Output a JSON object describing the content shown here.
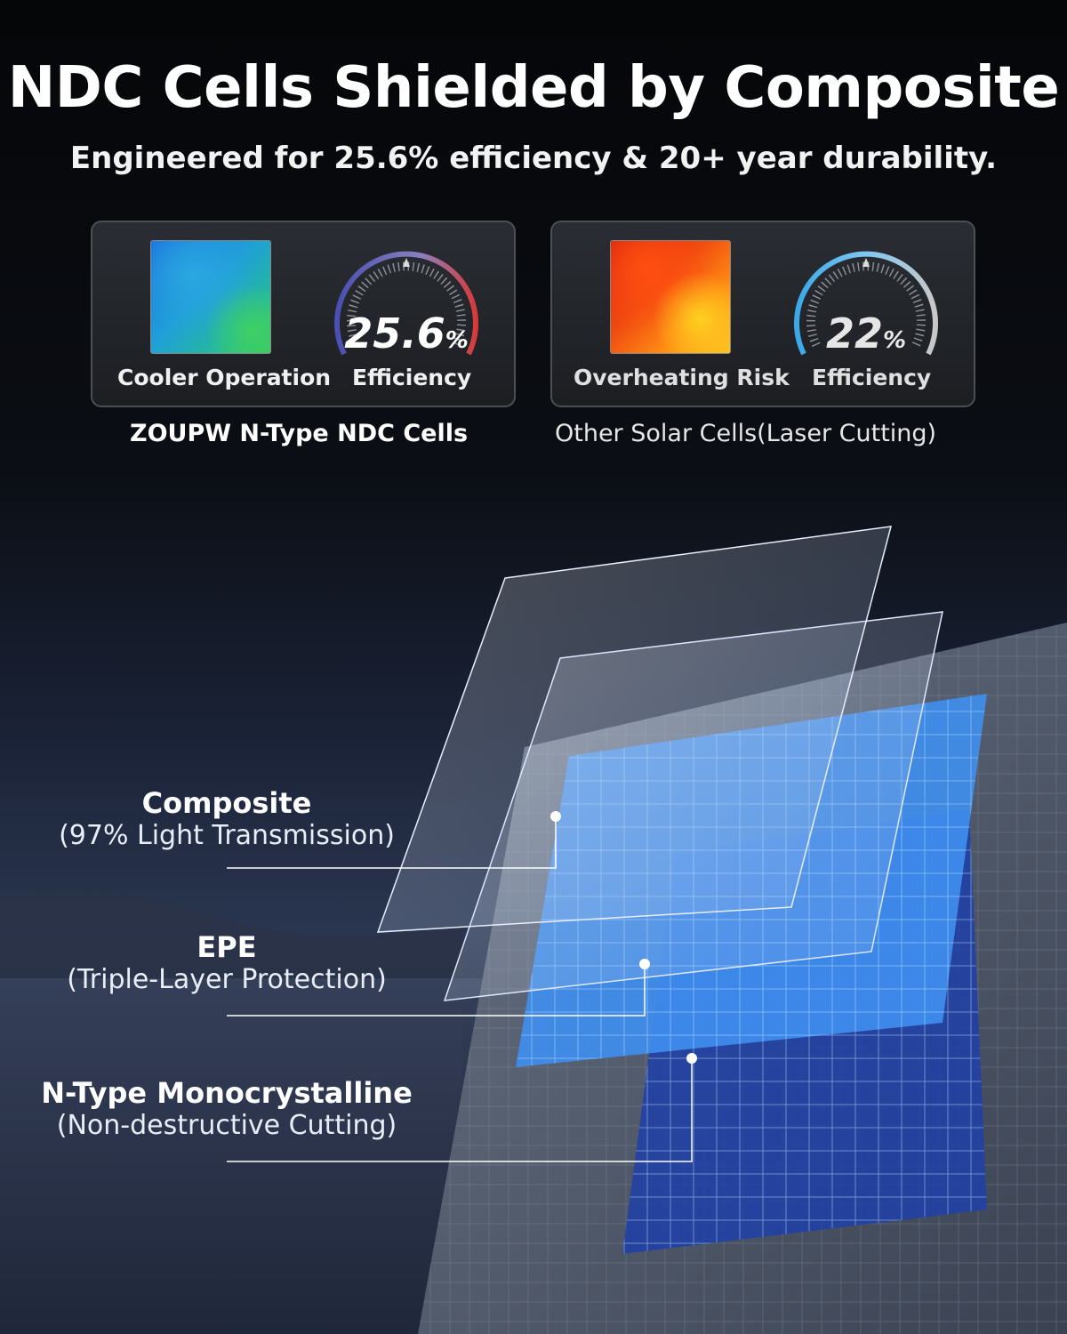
{
  "header": {
    "title": "NDC Cells Shielded by Composite",
    "subtitle": "Engineered for 25.6% efficiency & 20+ year durability."
  },
  "comparison": {
    "left": {
      "thermal_label": "Cooler Operation",
      "gauge_value": "25.6",
      "gauge_unit": "%",
      "gauge_label": "Efficiency",
      "caption": "ZOUPW N-Type NDC Cells"
    },
    "right": {
      "thermal_label": "Overheating Risk",
      "gauge_value": "22",
      "gauge_unit": "%",
      "gauge_label": "Efficiency",
      "caption": "Other Solar Cells(Laser Cutting)"
    }
  },
  "layers": [
    {
      "name": "Composite",
      "detail": "(97% Light Transmission)"
    },
    {
      "name": "EPE",
      "detail": "(Triple-Layer Protection)"
    },
    {
      "name": "N-Type Monocrystalline",
      "detail": "(Non-destructive Cutting)"
    }
  ],
  "colors": {
    "cool_gauge_start": "#4a4fb0",
    "cool_gauge_end": "#d83a3a",
    "hot_gauge_start": "#3aa8e8",
    "hot_gauge_end": "#c8c8c8",
    "cell_blue": "#3f8ff0"
  }
}
